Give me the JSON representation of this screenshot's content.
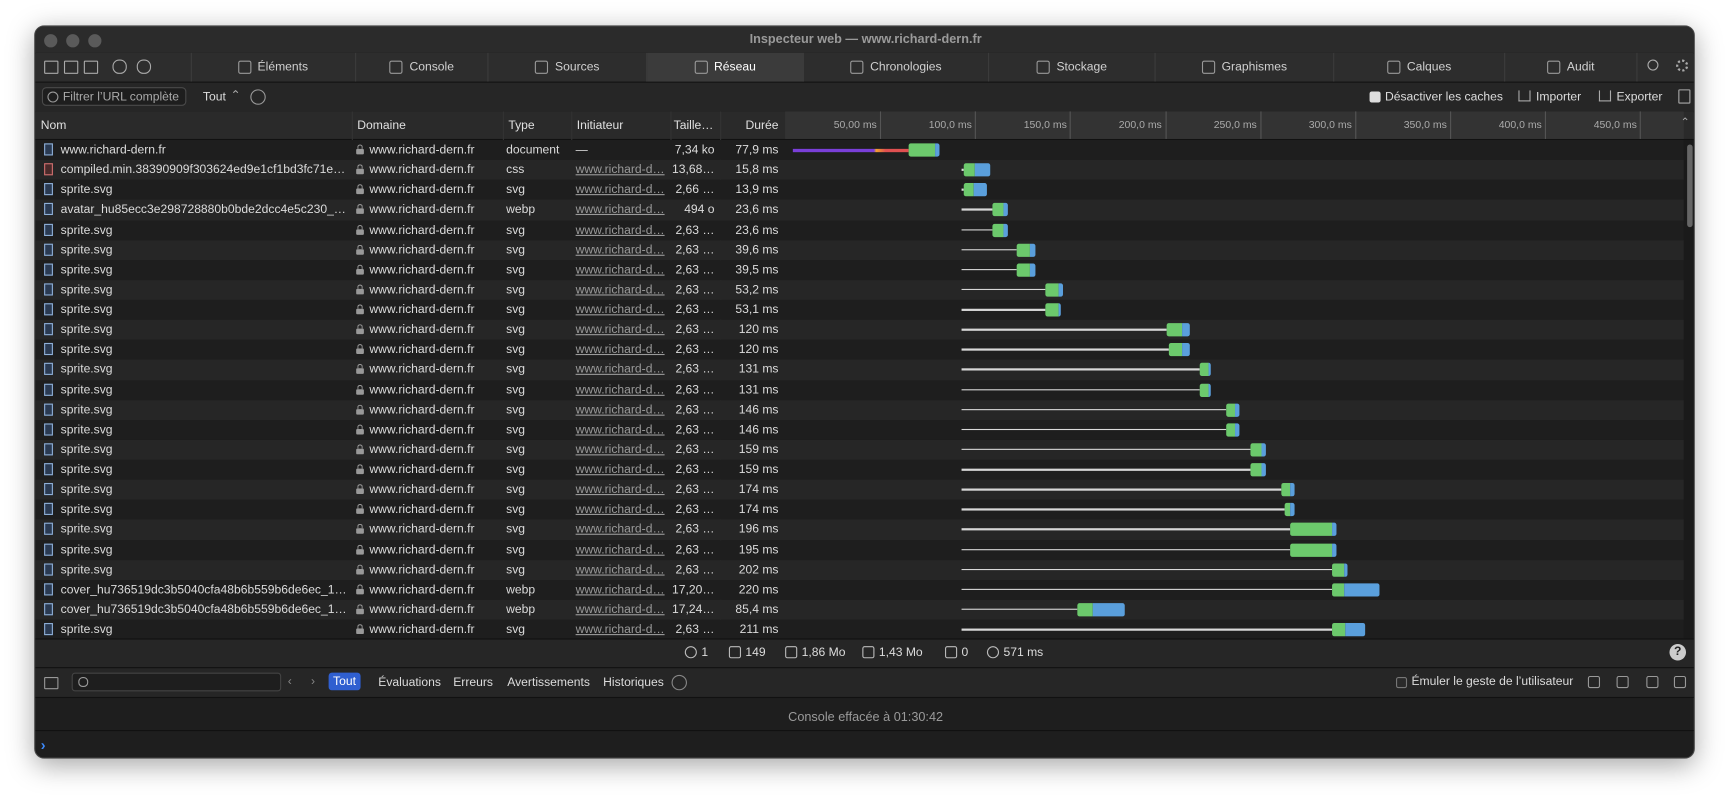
{
  "window": {
    "title": "Inspecteur web — www.richard-dern.fr"
  },
  "tabs": [
    "Éléments",
    "Console",
    "Sources",
    "Réseau",
    "Chronologies",
    "Stockage",
    "Graphismes",
    "Calques",
    "Audit"
  ],
  "filter": {
    "placeholder": "Filtrer l’URL complète",
    "type": "Tout"
  },
  "toolbar": {
    "disable_cache": "Désactiver les caches",
    "import": "Importer",
    "export": "Exporter"
  },
  "columns": [
    "Nom",
    "Domaine",
    "Type",
    "Initiateur",
    "Taille…",
    "Durée"
  ],
  "timeline": {
    "xlim": [
      0,
      473
    ],
    "ticks": [
      {
        "value": 50,
        "label": "50,00 ms"
      },
      {
        "value": 100,
        "label": "100,0 ms"
      },
      {
        "value": 150,
        "label": "150,0 ms"
      },
      {
        "value": 200,
        "label": "200,0 ms"
      },
      {
        "value": 250,
        "label": "250,0 ms"
      },
      {
        "value": 300,
        "label": "300,0 ms"
      },
      {
        "value": 350,
        "label": "350,0 ms"
      },
      {
        "value": 400,
        "label": "400,0 ms"
      },
      {
        "value": 450,
        "label": "450,0 ms"
      }
    ]
  },
  "rows": [
    {
      "name": "www.richard-dern.fr",
      "domain": "www.richard-dern.fr",
      "type": "document",
      "initiator": "—",
      "size": "7,34 ko",
      "duration": "77,9 ms",
      "timing": [
        4,
        65,
        79,
        81
      ]
    },
    {
      "name": "compiled.min.38390909f303624ed9e1cf1bd3fc71e…",
      "domain": "www.richard-dern.fr",
      "type": "css",
      "initiator": "www.richard-d…",
      "size": "13,68…",
      "duration": "15,8 ms",
      "timing": [
        93,
        94,
        100,
        108
      ]
    },
    {
      "name": "sprite.svg",
      "domain": "www.richard-dern.fr",
      "type": "svg",
      "initiator": "www.richard-d…",
      "size": "2,66 …",
      "duration": "13,9 ms",
      "timing": [
        93,
        94,
        99,
        106
      ]
    },
    {
      "name": "avatar_hu85ecc3e298728880b0bde2dcc4e5c230_…",
      "domain": "www.richard-dern.fr",
      "type": "webp",
      "initiator": "www.richard-d…",
      "size": "494 o",
      "duration": "23,6 ms",
      "timing": [
        93,
        109,
        115,
        117
      ]
    },
    {
      "name": "sprite.svg",
      "domain": "www.richard-dern.fr",
      "type": "svg",
      "initiator": "www.richard-d…",
      "size": "2,63 …",
      "duration": "23,6 ms",
      "timing": [
        93,
        109,
        115,
        117
      ]
    },
    {
      "name": "sprite.svg",
      "domain": "www.richard-dern.fr",
      "type": "svg",
      "initiator": "www.richard-d…",
      "size": "2,63 …",
      "duration": "39,6 ms",
      "timing": [
        93,
        122,
        129,
        132
      ]
    },
    {
      "name": "sprite.svg",
      "domain": "www.richard-dern.fr",
      "type": "svg",
      "initiator": "www.richard-d…",
      "size": "2,63 …",
      "duration": "39,5 ms",
      "timing": [
        93,
        122,
        129,
        132
      ]
    },
    {
      "name": "sprite.svg",
      "domain": "www.richard-dern.fr",
      "type": "svg",
      "initiator": "www.richard-d…",
      "size": "2,63 …",
      "duration": "53,2 ms",
      "timing": [
        93,
        137,
        144,
        146
      ]
    },
    {
      "name": "sprite.svg",
      "domain": "www.richard-dern.fr",
      "type": "svg",
      "initiator": "www.richard-d…",
      "size": "2,63 …",
      "duration": "53,1 ms",
      "timing": [
        93,
        137,
        144,
        145
      ]
    },
    {
      "name": "sprite.svg",
      "domain": "www.richard-dern.fr",
      "type": "svg",
      "initiator": "www.richard-d…",
      "size": "2,63 …",
      "duration": "120 ms",
      "timing": [
        93,
        201,
        209,
        213
      ]
    },
    {
      "name": "sprite.svg",
      "domain": "www.richard-dern.fr",
      "type": "svg",
      "initiator": "www.richard-d…",
      "size": "2,63 …",
      "duration": "120 ms",
      "timing": [
        93,
        202,
        209,
        213
      ]
    },
    {
      "name": "sprite.svg",
      "domain": "www.richard-dern.fr",
      "type": "svg",
      "initiator": "www.richard-d…",
      "size": "2,63 …",
      "duration": "131 ms",
      "timing": [
        93,
        218,
        223,
        224
      ]
    },
    {
      "name": "sprite.svg",
      "domain": "www.richard-dern.fr",
      "type": "svg",
      "initiator": "www.richard-d…",
      "size": "2,63 …",
      "duration": "131 ms",
      "timing": [
        93,
        218,
        223,
        224
      ]
    },
    {
      "name": "sprite.svg",
      "domain": "www.richard-dern.fr",
      "type": "svg",
      "initiator": "www.richard-d…",
      "size": "2,63 …",
      "duration": "146 ms",
      "timing": [
        93,
        232,
        237,
        239
      ]
    },
    {
      "name": "sprite.svg",
      "domain": "www.richard-dern.fr",
      "type": "svg",
      "initiator": "www.richard-d…",
      "size": "2,63 …",
      "duration": "146 ms",
      "timing": [
        93,
        232,
        237,
        239
      ]
    },
    {
      "name": "sprite.svg",
      "domain": "www.richard-dern.fr",
      "type": "svg",
      "initiator": "www.richard-d…",
      "size": "2,63 …",
      "duration": "159 ms",
      "timing": [
        93,
        245,
        251,
        253
      ]
    },
    {
      "name": "sprite.svg",
      "domain": "www.richard-dern.fr",
      "type": "svg",
      "initiator": "www.richard-d…",
      "size": "2,63 …",
      "duration": "159 ms",
      "timing": [
        93,
        245,
        251,
        253
      ]
    },
    {
      "name": "sprite.svg",
      "domain": "www.richard-dern.fr",
      "type": "svg",
      "initiator": "www.richard-d…",
      "size": "2,63 …",
      "duration": "174 ms",
      "timing": [
        93,
        261,
        266,
        268
      ]
    },
    {
      "name": "sprite.svg",
      "domain": "www.richard-dern.fr",
      "type": "svg",
      "initiator": "www.richard-d…",
      "size": "2,63 …",
      "duration": "174 ms",
      "timing": [
        93,
        263,
        266,
        268
      ]
    },
    {
      "name": "sprite.svg",
      "domain": "www.richard-dern.fr",
      "type": "svg",
      "initiator": "www.richard-d…",
      "size": "2,63 …",
      "duration": "196 ms",
      "timing": [
        93,
        266,
        288,
        290
      ]
    },
    {
      "name": "sprite.svg",
      "domain": "www.richard-dern.fr",
      "type": "svg",
      "initiator": "www.richard-d…",
      "size": "2,63 …",
      "duration": "195 ms",
      "timing": [
        93,
        266,
        288,
        290
      ]
    },
    {
      "name": "sprite.svg",
      "domain": "www.richard-dern.fr",
      "type": "svg",
      "initiator": "www.richard-d…",
      "size": "2,63 …",
      "duration": "202 ms",
      "timing": [
        93,
        288,
        294,
        296
      ]
    },
    {
      "name": "cover_hu736519dc3b5040cfa48b6b559b6de6ec_1…",
      "domain": "www.richard-dern.fr",
      "type": "webp",
      "initiator": "www.richard-d…",
      "size": "17,20…",
      "duration": "220 ms",
      "timing": [
        93,
        288,
        294,
        313
      ]
    },
    {
      "name": "cover_hu736519dc3b5040cfa48b6b559b6de6ec_1…",
      "domain": "www.richard-dern.fr",
      "type": "webp",
      "initiator": "www.richard-d…",
      "size": "17,24…",
      "duration": "85,4 ms",
      "timing": [
        93,
        154,
        162,
        179
      ]
    },
    {
      "name": "sprite.svg",
      "domain": "www.richard-dern.fr",
      "type": "svg",
      "initiator": "www.richard-d…",
      "size": "2,63 …",
      "duration": "211 ms",
      "timing": [
        93,
        288,
        295,
        305
      ]
    }
  ],
  "status": {
    "domains": "1",
    "resources": "149",
    "transferred": "1,86 Mo",
    "size": "1,43 Mo",
    "redirects": "0",
    "time": "571 ms"
  },
  "console": {
    "filters": [
      "Tout",
      "Évaluations",
      "Erreurs",
      "Avertissements",
      "Historiques"
    ],
    "emulate": "Émuler le geste de l’utilisateur",
    "message": "Console effacée à 01:30:42"
  }
}
